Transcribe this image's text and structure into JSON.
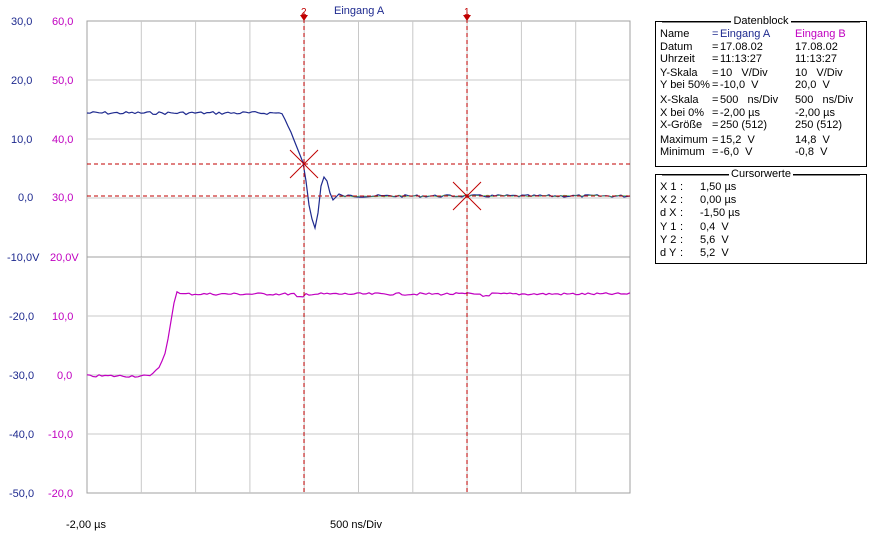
{
  "scope": {
    "channel_a_name": "Eingang A",
    "channel_a_color": "#1e2a8f",
    "channel_b_color": "#c000c0",
    "cursor_color": "#c00000",
    "grid_color": "#c8c8c8",
    "cursor1_label": "1",
    "cursor2_label": "2",
    "x_start_label": "-2,00 µs",
    "x_div_label": "500 ns/Div",
    "upper_ticks_a": [
      "30,0",
      "20,0",
      "10,0",
      "0,0"
    ],
    "upper_ticks_b": [
      "60,0",
      "50,0",
      "40,0",
      "30,0"
    ],
    "lower_ticks_a": [
      "-10,0V",
      "-20,0",
      "-30,0",
      "-40,0",
      "-50,0"
    ],
    "lower_ticks_b": [
      "20,0V",
      "10,0",
      "0,0",
      "-10,0",
      "-20,0"
    ]
  },
  "datenblock": {
    "title": "Datenblock",
    "rows": [
      {
        "label": "Name",
        "eq": "=",
        "a": "Eingang A",
        "b": "Eingang B"
      },
      {
        "label": "Datum",
        "eq": "=",
        "a": "17.08.02",
        "b": "17.08.02"
      },
      {
        "label": "Uhrzeit",
        "eq": "=",
        "a": "11:13:27",
        "b": "11:13:27"
      },
      {
        "label": "Y-Skala",
        "eq": "=",
        "a": "10   V/Div",
        "b": "10   V/Div"
      },
      {
        "label": "Y bei 50%",
        "eq": "=",
        "a": "-10,0  V",
        "b": "20,0  V"
      },
      {
        "label": "X-Skala",
        "eq": "=",
        "a": "500   ns/Div",
        "b": "500   ns/Div"
      },
      {
        "label": "X bei 0%",
        "eq": "=",
        "a": "-2,00 µs",
        "b": "-2,00 µs"
      },
      {
        "label": "X-Größe",
        "eq": "=",
        "a": "250 (512)",
        "b": "250 (512)"
      },
      {
        "label": "Maximum",
        "eq": "=",
        "a": "15,2  V",
        "b": "14,8  V"
      },
      {
        "label": "Minimum",
        "eq": "=",
        "a": "-6,0  V",
        "b": "-0,8  V"
      }
    ]
  },
  "cursorwerte": {
    "title": "Cursorwerte",
    "rows": [
      {
        "label": "X 1",
        "eq": ":",
        "value": "1,50 µs"
      },
      {
        "label": "X 2",
        "eq": ":",
        "value": "0,00 µs"
      },
      {
        "label": "d X",
        "eq": ":",
        "value": "-1,50 µs"
      },
      {
        "label": "Y 1",
        "eq": ":",
        "value": "0,4  V"
      },
      {
        "label": "Y 2",
        "eq": ":",
        "value": "5,6  V"
      },
      {
        "label": "d Y",
        "eq": ":",
        "value": "5,2  V"
      }
    ]
  }
}
